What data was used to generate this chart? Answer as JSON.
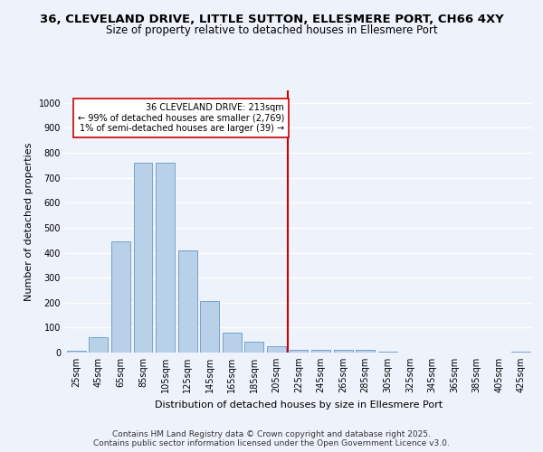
{
  "title_line1": "36, CLEVELAND DRIVE, LITTLE SUTTON, ELLESMERE PORT, CH66 4XY",
  "title_line2": "Size of property relative to detached houses in Ellesmere Port",
  "xlabel": "Distribution of detached houses by size in Ellesmere Port",
  "ylabel": "Number of detached properties",
  "categories": [
    "25sqm",
    "45sqm",
    "65sqm",
    "85sqm",
    "105sqm",
    "125sqm",
    "145sqm",
    "165sqm",
    "185sqm",
    "205sqm",
    "225sqm",
    "245sqm",
    "265sqm",
    "285sqm",
    "305sqm",
    "325sqm",
    "345sqm",
    "365sqm",
    "385sqm",
    "405sqm",
    "425sqm"
  ],
  "values": [
    8,
    62,
    447,
    762,
    762,
    410,
    205,
    78,
    43,
    25,
    10,
    10,
    10,
    12,
    5,
    0,
    0,
    0,
    0,
    0,
    5
  ],
  "bar_color": "#b8d0e8",
  "bar_edge_color": "#6699cc",
  "vline_pos": 9.5,
  "annotation_line1": "36 CLEVELAND DRIVE: 213sqm",
  "annotation_line2": "← 99% of detached houses are smaller (2,769)",
  "annotation_line3": "1% of semi-detached houses are larger (39) →",
  "annotation_box_facecolor": "#ffffff",
  "annotation_border_color": "#cc0000",
  "vline_color": "#cc0000",
  "ylim": [
    0,
    1050
  ],
  "yticks": [
    0,
    100,
    200,
    300,
    400,
    500,
    600,
    700,
    800,
    900,
    1000
  ],
  "background_color": "#eef2fa",
  "grid_color": "#ffffff",
  "footer_line1": "Contains HM Land Registry data © Crown copyright and database right 2025.",
  "footer_line2": "Contains public sector information licensed under the Open Government Licence v3.0.",
  "title1_fontsize": 9.5,
  "title2_fontsize": 8.5,
  "axis_label_fontsize": 8,
  "tick_fontsize": 7,
  "footer_fontsize": 6.5,
  "annotation_fontsize": 7
}
